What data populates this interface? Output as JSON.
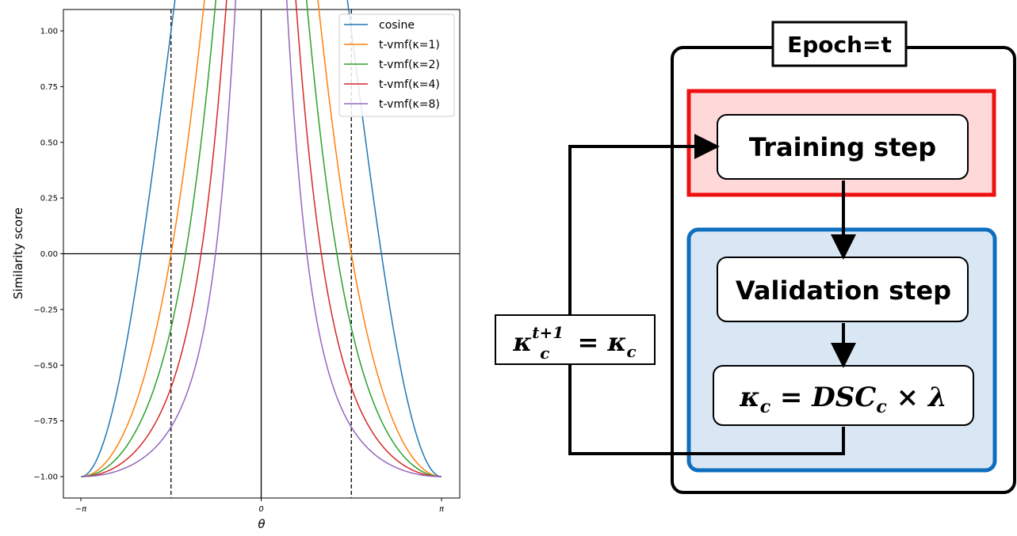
{
  "chart_data": {
    "type": "line",
    "xlabel": "θ",
    "ylabel": "Similarity score",
    "xlim": [
      -3.14159,
      3.14159
    ],
    "ylim": [
      -1.08,
      1.08
    ],
    "x_ticks": [
      {
        "value": -3.14159,
        "label": "−π"
      },
      {
        "value": 0,
        "label": "0"
      },
      {
        "value": 3.14159,
        "label": "π"
      }
    ],
    "y_ticks": [
      {
        "value": 1.0,
        "label": "1.00"
      },
      {
        "value": 0.75,
        "label": "0.75"
      },
      {
        "value": 0.5,
        "label": "0.50"
      },
      {
        "value": 0.25,
        "label": "0.25"
      },
      {
        "value": 0.0,
        "label": "0.00"
      },
      {
        "value": -0.25,
        "label": "−0.25"
      },
      {
        "value": -0.5,
        "label": "−0.50"
      },
      {
        "value": -0.75,
        "label": "−0.75"
      },
      {
        "value": -1.0,
        "label": "−1.00"
      }
    ],
    "series": [
      {
        "name": "cosine",
        "kappa": 0,
        "color": "#1f77b4"
      },
      {
        "name": "t-vmf(κ=1)",
        "kappa": 1,
        "color": "#ff7f0e"
      },
      {
        "name": "t-vmf(κ=2)",
        "kappa": 2,
        "color": "#2ca02c"
      },
      {
        "name": "t-vmf(κ=4)",
        "kappa": 4,
        "color": "#d62728"
      },
      {
        "name": "t-vmf(κ=8)",
        "kappa": 8,
        "color": "#9467bd"
      }
    ],
    "vertical_dashed_lines": [
      -1.5708,
      1.5708
    ],
    "legend_position": "top-right",
    "grid": false
  },
  "diagram": {
    "epoch_label": "Epoch=t",
    "training_step": "Training step",
    "validation_step": "Validation step",
    "kappa_update": "κc = DSCc × λ",
    "kappa_next": "κc^(t+1) = κc",
    "colors": {
      "training_fill": "#ffd9d9",
      "training_border": "#ee1111",
      "validation_fill": "#d9e7f5",
      "validation_border": "#0f6fbf"
    }
  }
}
